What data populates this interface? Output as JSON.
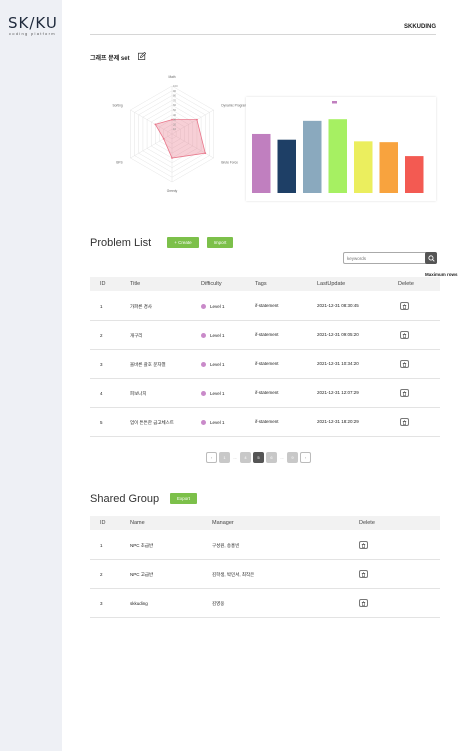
{
  "logo": {
    "text": "SK/KU",
    "subtitle": "coding platform"
  },
  "topbar": {
    "title": "SKKUDING"
  },
  "graph_set": {
    "title": "그래프 문제 set"
  },
  "chart_data": [
    {
      "type": "radar",
      "axes": [
        "Math",
        "Dynamic Programming",
        "Brute Force",
        "Greedy",
        "BFS",
        "Sorting"
      ],
      "scale_ticks": [
        "100",
        "90",
        "80",
        "70",
        "60",
        "50",
        "40",
        "30",
        "20",
        "10"
      ],
      "values": [
        30,
        60,
        80,
        50,
        20,
        40
      ],
      "color": "#e8768a"
    },
    {
      "type": "bar",
      "categories": [
        "",
        "",
        "",
        "",
        "",
        "",
        ""
      ],
      "values": [
        72,
        65,
        88,
        90,
        63,
        62,
        45
      ],
      "colors": [
        "#c07fbf",
        "#1e3f66",
        "#8aa9be",
        "#a6f062",
        "#ebee5e",
        "#f8a33e",
        "#f35a52"
      ],
      "ylim": [
        0,
        100
      ],
      "legend": "top"
    }
  ],
  "problems": {
    "title": "Problem List",
    "create_label": "+ Create",
    "import_label": "Import",
    "search_placeholder": "keywords",
    "max_rows_label": "Maximum rows",
    "headers": {
      "id": "ID",
      "title": "Title",
      "difficulty": "Difficulty",
      "tags": "Tags",
      "last_update": "LastUpdate",
      "delete": "Delete"
    },
    "rows": [
      {
        "id": "1",
        "title": "가파른 경사",
        "difficulty": "Level 1",
        "tags": "if-statement",
        "last_update": "2021-12-31 08:30:45"
      },
      {
        "id": "2",
        "title": "개구리",
        "difficulty": "Level 1",
        "tags": "if-statement",
        "last_update": "2021-12-31 09:05:20"
      },
      {
        "id": "3",
        "title": "올바른 괄호 문자열",
        "difficulty": "Level 1",
        "tags": "if-statement",
        "last_update": "2021-12-31 10:34:20"
      },
      {
        "id": "4",
        "title": "피보나치",
        "difficulty": "Level 1",
        "tags": "if-statement",
        "last_update": "2021-12-31 12:07:29"
      },
      {
        "id": "5",
        "title": "엄이 튼튼한 금고체스트",
        "difficulty": "Level 1",
        "tags": "if-statement",
        "last_update": "2021-12-31 18:20:29"
      }
    ]
  },
  "pagination": {
    "prev": "‹",
    "next": "›",
    "pages": [
      "1",
      "...",
      "4",
      "5",
      "6",
      "...",
      "9"
    ],
    "active": "5"
  },
  "shared": {
    "title": "Shared Group",
    "export_label": "Export",
    "headers": {
      "id": "ID",
      "name": "Name",
      "manager": "Manager",
      "delete": "Delete"
    },
    "rows": [
      {
        "id": "1",
        "name": "NPC 초급반",
        "manager": "구성원, 송홍빈"
      },
      {
        "id": "2",
        "name": "NPC 고급반",
        "manager": "김학생, 박민서, 최작은"
      },
      {
        "id": "3",
        "name": "skkuding",
        "manager": "김영웅"
      }
    ]
  }
}
